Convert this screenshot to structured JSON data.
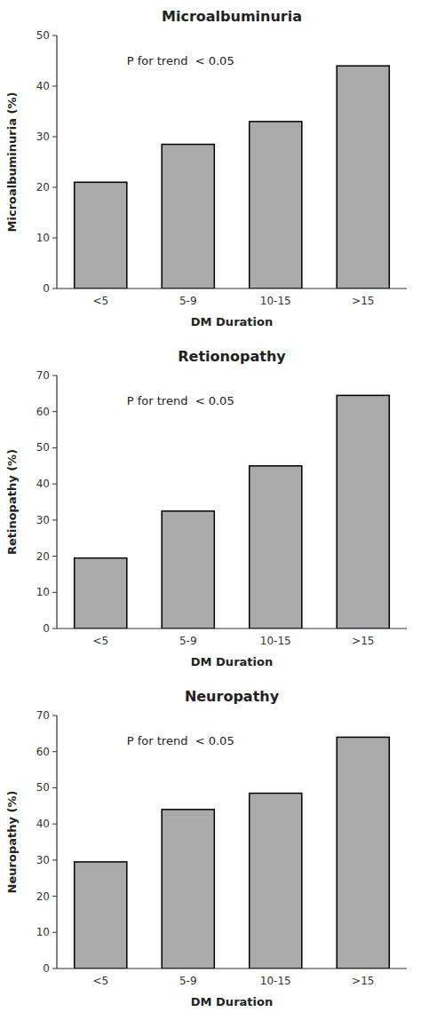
{
  "chart_data": [
    {
      "type": "bar",
      "title": "Microalbuminuria",
      "ylabel": "Microalbuminuria (%)",
      "xlabel": "DM Duration",
      "categories": [
        "<5",
        "5-9",
        "10-15",
        ">15"
      ],
      "values": [
        21,
        28.5,
        33,
        44
      ],
      "color": "#aaaaaa",
      "ylim": [
        0,
        50
      ],
      "yticks": [
        0,
        10,
        20,
        30,
        40,
        50
      ],
      "annotation": "P for trend  < 0.05"
    },
    {
      "type": "bar",
      "title": "Retionopathy",
      "ylabel": "Retinopathy (%)",
      "xlabel": "DM Duration",
      "categories": [
        "<5",
        "5-9",
        "10-15",
        ">15"
      ],
      "values": [
        19.5,
        32.5,
        45,
        64.5
      ],
      "color": "#aaaaaa",
      "ylim": [
        0,
        70
      ],
      "yticks": [
        0,
        10,
        20,
        30,
        40,
        50,
        60,
        70
      ],
      "annotation": "P for trend  < 0.05"
    },
    {
      "type": "bar",
      "title": "Neuropathy",
      "ylabel": "Neuropathy (%)",
      "xlabel": "DM Duration",
      "categories": [
        "<5",
        "5-9",
        "10-15",
        ">15"
      ],
      "values": [
        29.5,
        44,
        48.5,
        64
      ],
      "color": "#aaaaaa",
      "ylim": [
        0,
        70
      ],
      "yticks": [
        0,
        10,
        20,
        30,
        40,
        50,
        60,
        70
      ],
      "annotation": "P for trend  < 0.05"
    }
  ]
}
